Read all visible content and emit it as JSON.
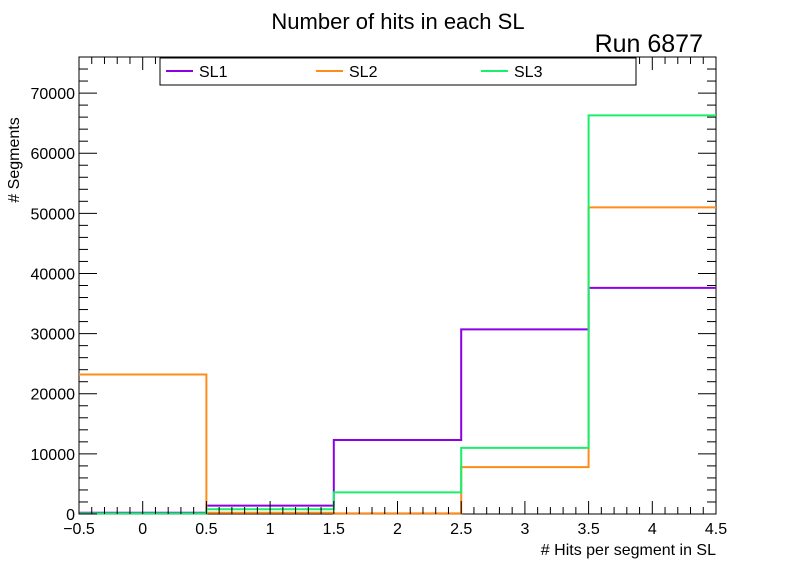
{
  "chart_data": {
    "type": "histogram-step",
    "title": "Number of hits in each SL",
    "annotation": "Run 6877",
    "xlabel": "# Hits per segment in SL",
    "ylabel": "# Segments",
    "xlim": [
      -0.5,
      4.5
    ],
    "ylim": [
      0,
      76000
    ],
    "bin_edges": [
      -0.5,
      0.5,
      1.5,
      2.5,
      3.5,
      4.5
    ],
    "x_ticks": [
      "−0.5",
      "0",
      "0.5",
      "1",
      "1.5",
      "2",
      "2.5",
      "3",
      "3.5",
      "4",
      "4.5"
    ],
    "x_tick_values": [
      -0.5,
      0,
      0.5,
      1,
      1.5,
      2,
      2.5,
      3,
      3.5,
      4,
      4.5
    ],
    "y_ticks": [
      "0",
      "10000",
      "20000",
      "30000",
      "40000",
      "50000",
      "60000",
      "70000"
    ],
    "y_tick_values": [
      0,
      10000,
      20000,
      30000,
      40000,
      50000,
      60000,
      70000
    ],
    "legend_position": "top",
    "series": [
      {
        "name": "SL1",
        "color": "#8c00e6",
        "values": [
          200,
          1400,
          12300,
          30700,
          37600
        ]
      },
      {
        "name": "SL2",
        "color": "#ff8c1a",
        "values": [
          23200,
          200,
          100,
          7800,
          51000
        ]
      },
      {
        "name": "SL3",
        "color": "#17f06a",
        "values": [
          100,
          800,
          3600,
          11000,
          66300
        ]
      }
    ]
  }
}
